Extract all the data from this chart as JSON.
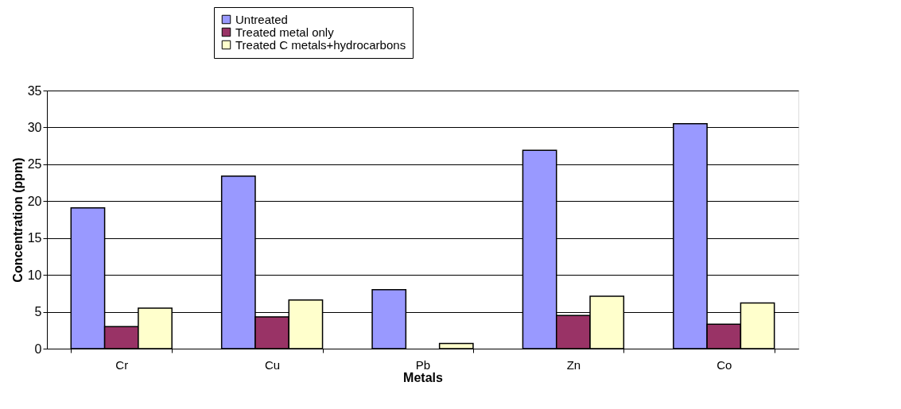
{
  "chart_data": {
    "type": "bar",
    "xlabel": "Metals",
    "ylabel": "Concentration (ppm)",
    "categories": [
      "Cr",
      "Cu",
      "Pb",
      "Zn",
      "Co"
    ],
    "series": [
      {
        "name": "Untreated",
        "color": "#9999ff",
        "values": [
          19.1,
          23.4,
          8.0,
          26.9,
          30.5
        ]
      },
      {
        "name": "Treated metal only",
        "color": "#993366",
        "values": [
          3.0,
          4.3,
          null,
          4.5,
          3.3
        ]
      },
      {
        "name": "Treated C metals+hydrocarbons",
        "color": "#ffffcc",
        "values": [
          5.5,
          6.6,
          0.7,
          7.1,
          6.2
        ]
      }
    ],
    "ylim": [
      0,
      35
    ],
    "yticks": [
      0,
      5,
      10,
      15,
      20,
      25,
      30,
      35
    ],
    "grid": "y",
    "legend": "top"
  }
}
